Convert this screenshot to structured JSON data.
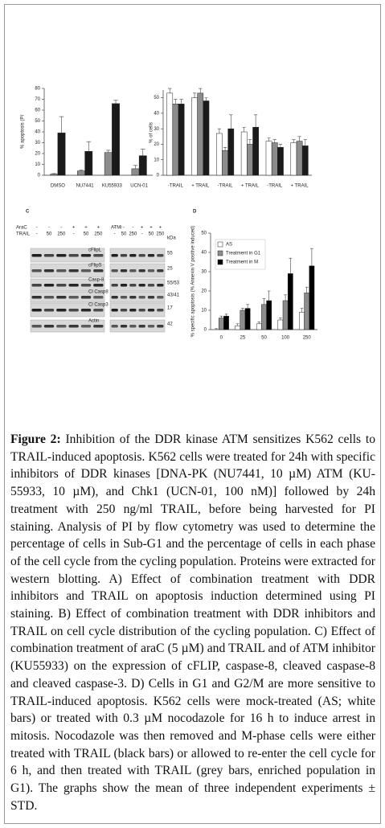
{
  "chart_data": [
    {
      "type": "bar",
      "ylabel": "% apoptosis (PI",
      "categories": [
        "DMSO",
        "NU7441",
        "KU55933",
        "UCN-01"
      ],
      "ylim": [
        0,
        80
      ],
      "yticks": [
        0,
        10,
        20,
        30,
        40,
        50,
        60,
        70,
        80
      ],
      "series": [
        {
          "color": "#8c8c8c",
          "values": [
            1,
            4,
            21,
            6
          ],
          "errors": [
            0.5,
            1,
            2,
            3
          ]
        },
        {
          "color": "#1a1a1a",
          "values": [
            39,
            22,
            66,
            18
          ],
          "errors": [
            15,
            9,
            3,
            6
          ]
        }
      ]
    },
    {
      "type": "bar",
      "ylabel": "% of cells",
      "categories": [
        "-TRAIL",
        "+ TRAIL",
        "-TRAIL",
        "+ TRAIL",
        "-TRAIL",
        "+ TRAIL"
      ],
      "ylim": [
        0,
        55
      ],
      "yticks": [
        0,
        10,
        20,
        30,
        40,
        50
      ],
      "series": [
        {
          "color": "#ffffff",
          "values": [
            53,
            50,
            27,
            28,
            22,
            21
          ],
          "errors": [
            3,
            3,
            3,
            3,
            2,
            2
          ]
        },
        {
          "color": "#8c8c8c",
          "values": [
            46,
            53,
            16,
            20,
            21,
            22
          ],
          "errors": [
            3,
            3,
            2,
            3,
            2,
            3
          ]
        },
        {
          "color": "#1a1a1a",
          "values": [
            46,
            48,
            30,
            31,
            18,
            19
          ],
          "errors": [
            3,
            2,
            9,
            8,
            2,
            4
          ]
        }
      ]
    },
    {
      "type": "bar",
      "label": "D",
      "ylabel": "% specific apoptosis (% Annexin V positive induced)",
      "categories": [
        "0",
        "25",
        "50",
        "100",
        "250"
      ],
      "ylim": [
        0,
        50
      ],
      "yticks": [
        0,
        10,
        20,
        30,
        40,
        50
      ],
      "series": [
        {
          "name": "AS",
          "color": "#ffffff",
          "values": [
            0,
            2,
            3,
            5,
            9
          ],
          "errors": [
            0.5,
            1,
            1,
            1,
            2
          ]
        },
        {
          "name": "Treatment in G1",
          "color": "#8c8c8c",
          "values": [
            6,
            10,
            13,
            15,
            19
          ],
          "errors": [
            1,
            1,
            3,
            3,
            3
          ]
        },
        {
          "name": "Treatment in M",
          "color": "#000000",
          "values": [
            7,
            11,
            15,
            29,
            33
          ],
          "errors": [
            1,
            2,
            5,
            8,
            9
          ]
        }
      ]
    }
  ],
  "blot": {
    "label": "C",
    "left": {
      "rows": [
        {
          "label": "AraC",
          "lanes": [
            "-",
            "-",
            "-",
            "+",
            "+",
            "+"
          ]
        },
        {
          "label": "TRAIL",
          "lanes": [
            "-",
            "50",
            "250",
            "-",
            "50",
            "250"
          ]
        }
      ],
      "bands": [
        "cFlipL",
        "cFlipS",
        "Casp-8",
        "Cl Casp8",
        "Cl Casp3",
        "Actin"
      ]
    },
    "right": {
      "rows": [
        {
          "label": "ATMi",
          "lanes": [
            "-",
            "-",
            "-",
            "+",
            "+",
            "+"
          ]
        },
        {
          "lanes": [
            "-",
            "50",
            "250",
            "-",
            "50",
            "250"
          ]
        }
      ]
    },
    "kda": [
      "kDa",
      "55",
      "25",
      "55/53",
      "43/41",
      "17",
      "42"
    ]
  },
  "caption": {
    "label": "Figure 2:",
    "text": "Inhibition of the DDR kinase ATM sensitizes K562 cells to TRAIL-induced apoptosis. K562 cells were treated for 24h with specific inhibitors of DDR kinases [DNA-PK (NU7441, 10 µM) ATM (KU-55933, 10 µM), and Chk1 (UCN-01, 100 nM)] followed by 24h treatment with 250 ng/ml TRAIL, before being harvested for PI staining. Analysis of PI by flow cytometry was used to determine the percentage of cells in Sub-G1 and the percentage of cells in each phase of the cell cycle from the cycling population. Proteins were extracted for western blotting. A) Effect of combination treatment with DDR inhibitors and TRAIL on apoptosis induction determined using PI staining. B) Effect of combination treatment with DDR inhibitors and TRAIL on cell cycle distribution of the cycling population. C) Effect of combination treatment of araC (5 µM) and TRAIL and of ATM inhibitor (KU55933) on the expression of cFLIP, caspase-8, cleaved caspase-8 and cleaved caspase-3. D) Cells in G1 and G2/M are more sensitive to TRAIL-induced apoptosis. K562 cells were mock-treated (AS; white bars) or treated with 0.3 µM nocodazole for 16 h to induce arrest in mitosis. Nocodazole was then removed and M-phase cells were either treated with TRAIL (black bars) or allowed to re-enter the cell cycle for 6 h, and then treated with TRAIL (grey bars, enriched population in G1). The graphs show the mean of three independent experiments ± STD."
  }
}
